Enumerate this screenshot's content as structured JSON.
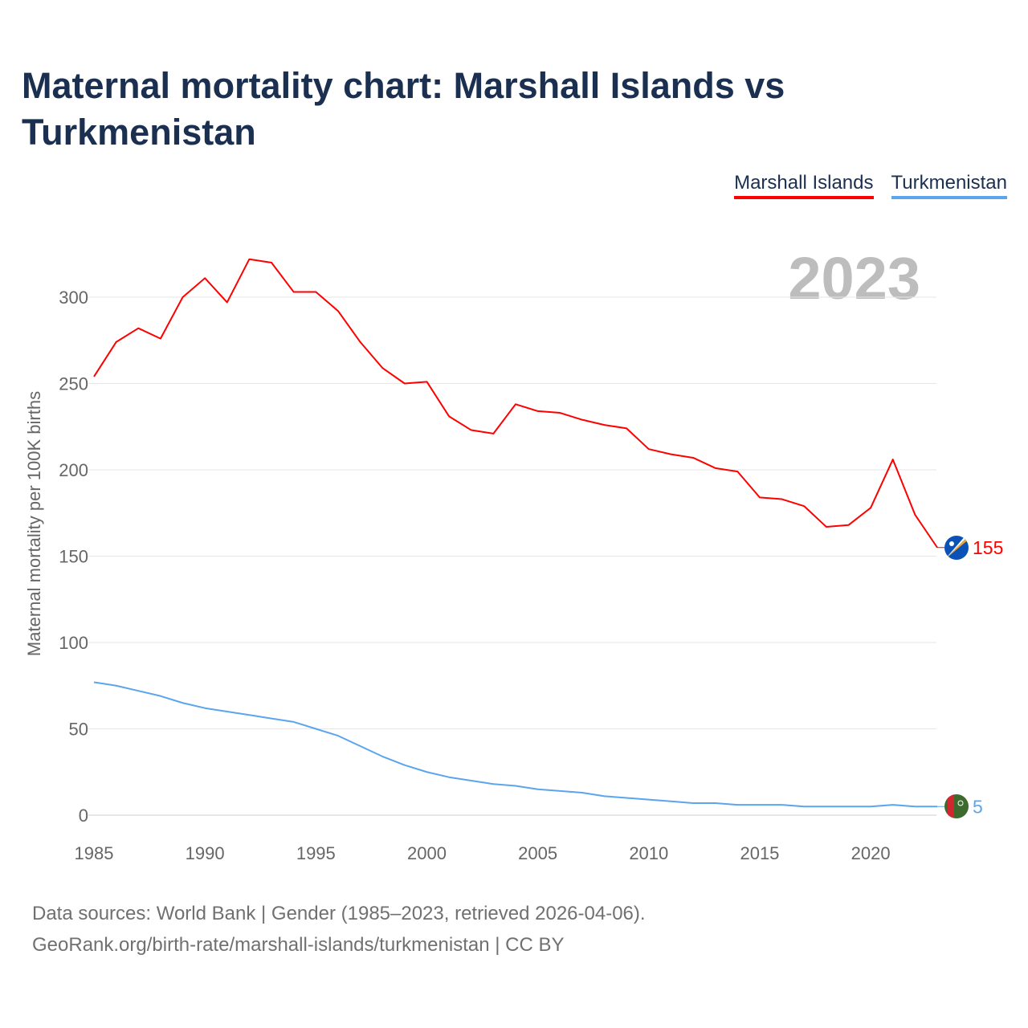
{
  "title": "Maternal mortality chart: Marshall Islands vs Turkmenistan",
  "footer": {
    "line1": "Data sources: World Bank | Gender (1985–2023, retrieved 2026-04-06).",
    "line2": "GeoRank.org/birth-rate/marshall-islands/turkmenistan | CC BY"
  },
  "chart_data": {
    "type": "line",
    "title": "Maternal mortality chart: Marshall Islands vs Turkmenistan",
    "ylabel": "Maternal mortality per 100K births",
    "xlabel": "",
    "year_label": "2023",
    "xlim": [
      1985,
      2023
    ],
    "ylim": [
      0,
      330
    ],
    "xticks": [
      1985,
      1990,
      1995,
      2000,
      2005,
      2010,
      2015,
      2020
    ],
    "yticks": [
      0,
      50,
      100,
      150,
      200,
      250,
      300
    ],
    "grid": true,
    "legend_position": "top-right",
    "x": [
      1985,
      1986,
      1987,
      1988,
      1989,
      1990,
      1991,
      1992,
      1993,
      1994,
      1995,
      1996,
      1997,
      1998,
      1999,
      2000,
      2001,
      2002,
      2003,
      2004,
      2005,
      2006,
      2007,
      2008,
      2009,
      2010,
      2011,
      2012,
      2013,
      2014,
      2015,
      2016,
      2017,
      2018,
      2019,
      2020,
      2021,
      2022,
      2023
    ],
    "series": [
      {
        "name": "Marshall Islands",
        "color": "#ff0000",
        "end_label": "155",
        "values": [
          254,
          274,
          282,
          276,
          300,
          311,
          297,
          322,
          320,
          303,
          303,
          292,
          274,
          259,
          250,
          251,
          231,
          223,
          221,
          238,
          234,
          233,
          229,
          226,
          224,
          212,
          209,
          207,
          201,
          199,
          184,
          183,
          179,
          167,
          168,
          178,
          206,
          174,
          155
        ]
      },
      {
        "name": "Turkmenistan",
        "color": "#5aa5ee",
        "end_label": "5",
        "values": [
          77,
          75,
          72,
          69,
          65,
          62,
          60,
          58,
          56,
          54,
          50,
          46,
          40,
          34,
          29,
          25,
          22,
          20,
          18,
          17,
          15,
          14,
          13,
          11,
          10,
          9,
          8,
          7,
          7,
          6,
          6,
          6,
          5,
          5,
          5,
          5,
          6,
          5,
          5
        ]
      }
    ]
  }
}
